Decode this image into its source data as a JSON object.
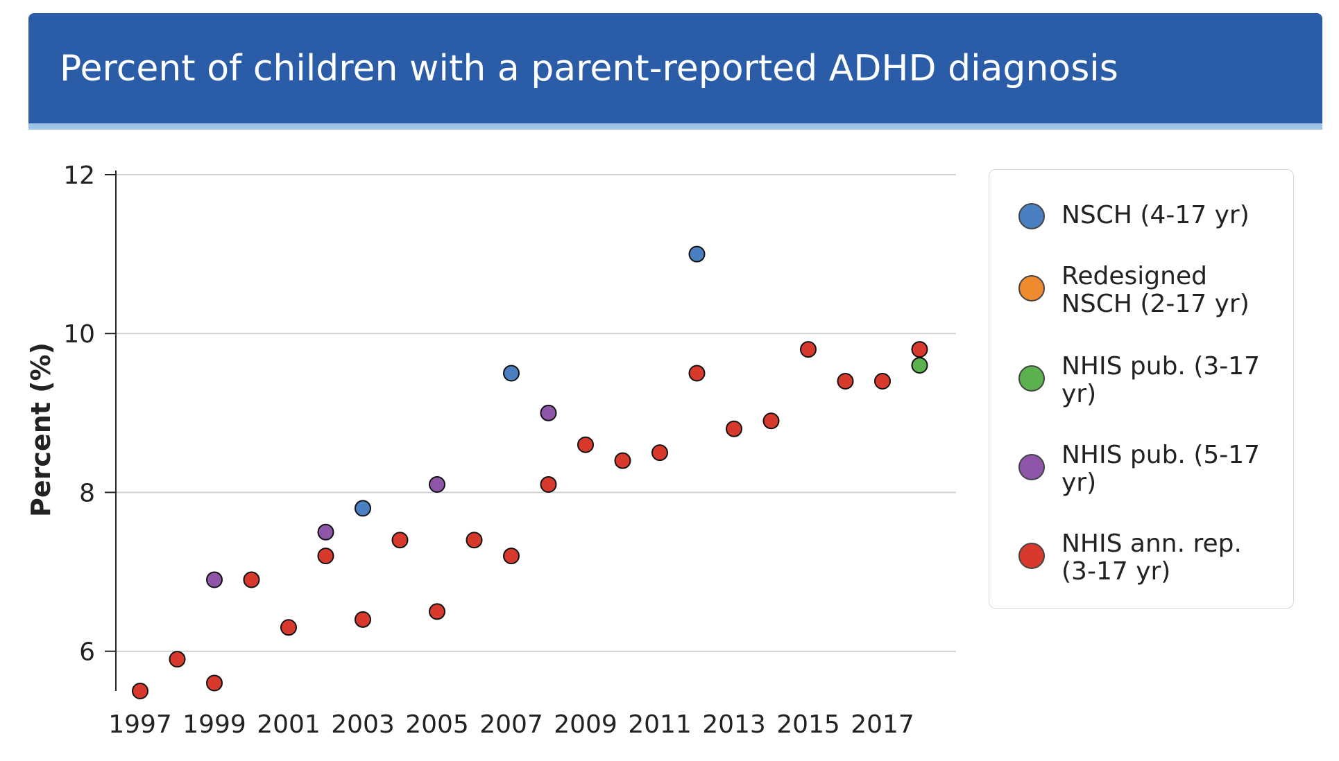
{
  "title": "Percent of children with a parent-reported ADHD diagnosis",
  "chart_data": {
    "type": "scatter",
    "title": "Percent of children with a parent-reported ADHD diagnosis",
    "xlabel": "",
    "ylabel": "Percent (%)",
    "xlim": [
      1997,
      2018
    ],
    "ylim": [
      5.5,
      12
    ],
    "x_ticks": [
      1997,
      1999,
      2001,
      2003,
      2005,
      2007,
      2009,
      2011,
      2013,
      2015,
      2017
    ],
    "y_ticks": [
      6,
      8,
      10,
      12
    ],
    "grid": "horizontal",
    "legend_position": "right",
    "series": [
      {
        "name": "NSCH (4-17 yr)",
        "color": "#4a7fc1",
        "points": [
          [
            2003,
            7.8
          ],
          [
            2007,
            9.5
          ],
          [
            2012,
            11.0
          ]
        ]
      },
      {
        "name": "Redesigned NSCH (2-17 yr)",
        "color": "#f08a2e",
        "points": []
      },
      {
        "name": "NHIS pub. (3-17 yr)",
        "color": "#5cb14f",
        "points": [
          [
            2018,
            9.6
          ]
        ]
      },
      {
        "name": "NHIS pub. (5-17 yr)",
        "color": "#8e55a8",
        "points": [
          [
            1999,
            6.9
          ],
          [
            2002,
            7.5
          ],
          [
            2005,
            8.1
          ],
          [
            2008,
            9.0
          ]
        ]
      },
      {
        "name": "NHIS ann. rep. (3-17 yr)",
        "color": "#d73a2c",
        "points": [
          [
            1997,
            5.5
          ],
          [
            1998,
            5.9
          ],
          [
            1999,
            5.6
          ],
          [
            2000,
            6.9
          ],
          [
            2001,
            6.3
          ],
          [
            2002,
            7.2
          ],
          [
            2003,
            6.4
          ],
          [
            2004,
            7.4
          ],
          [
            2005,
            6.5
          ],
          [
            2006,
            7.4
          ],
          [
            2007,
            7.2
          ],
          [
            2008,
            8.1
          ],
          [
            2009,
            8.6
          ],
          [
            2010,
            8.4
          ],
          [
            2011,
            8.5
          ],
          [
            2012,
            9.5
          ],
          [
            2013,
            8.8
          ],
          [
            2014,
            8.9
          ],
          [
            2015,
            9.8
          ],
          [
            2016,
            9.4
          ],
          [
            2017,
            9.4
          ],
          [
            2018,
            9.8
          ]
        ]
      }
    ]
  }
}
